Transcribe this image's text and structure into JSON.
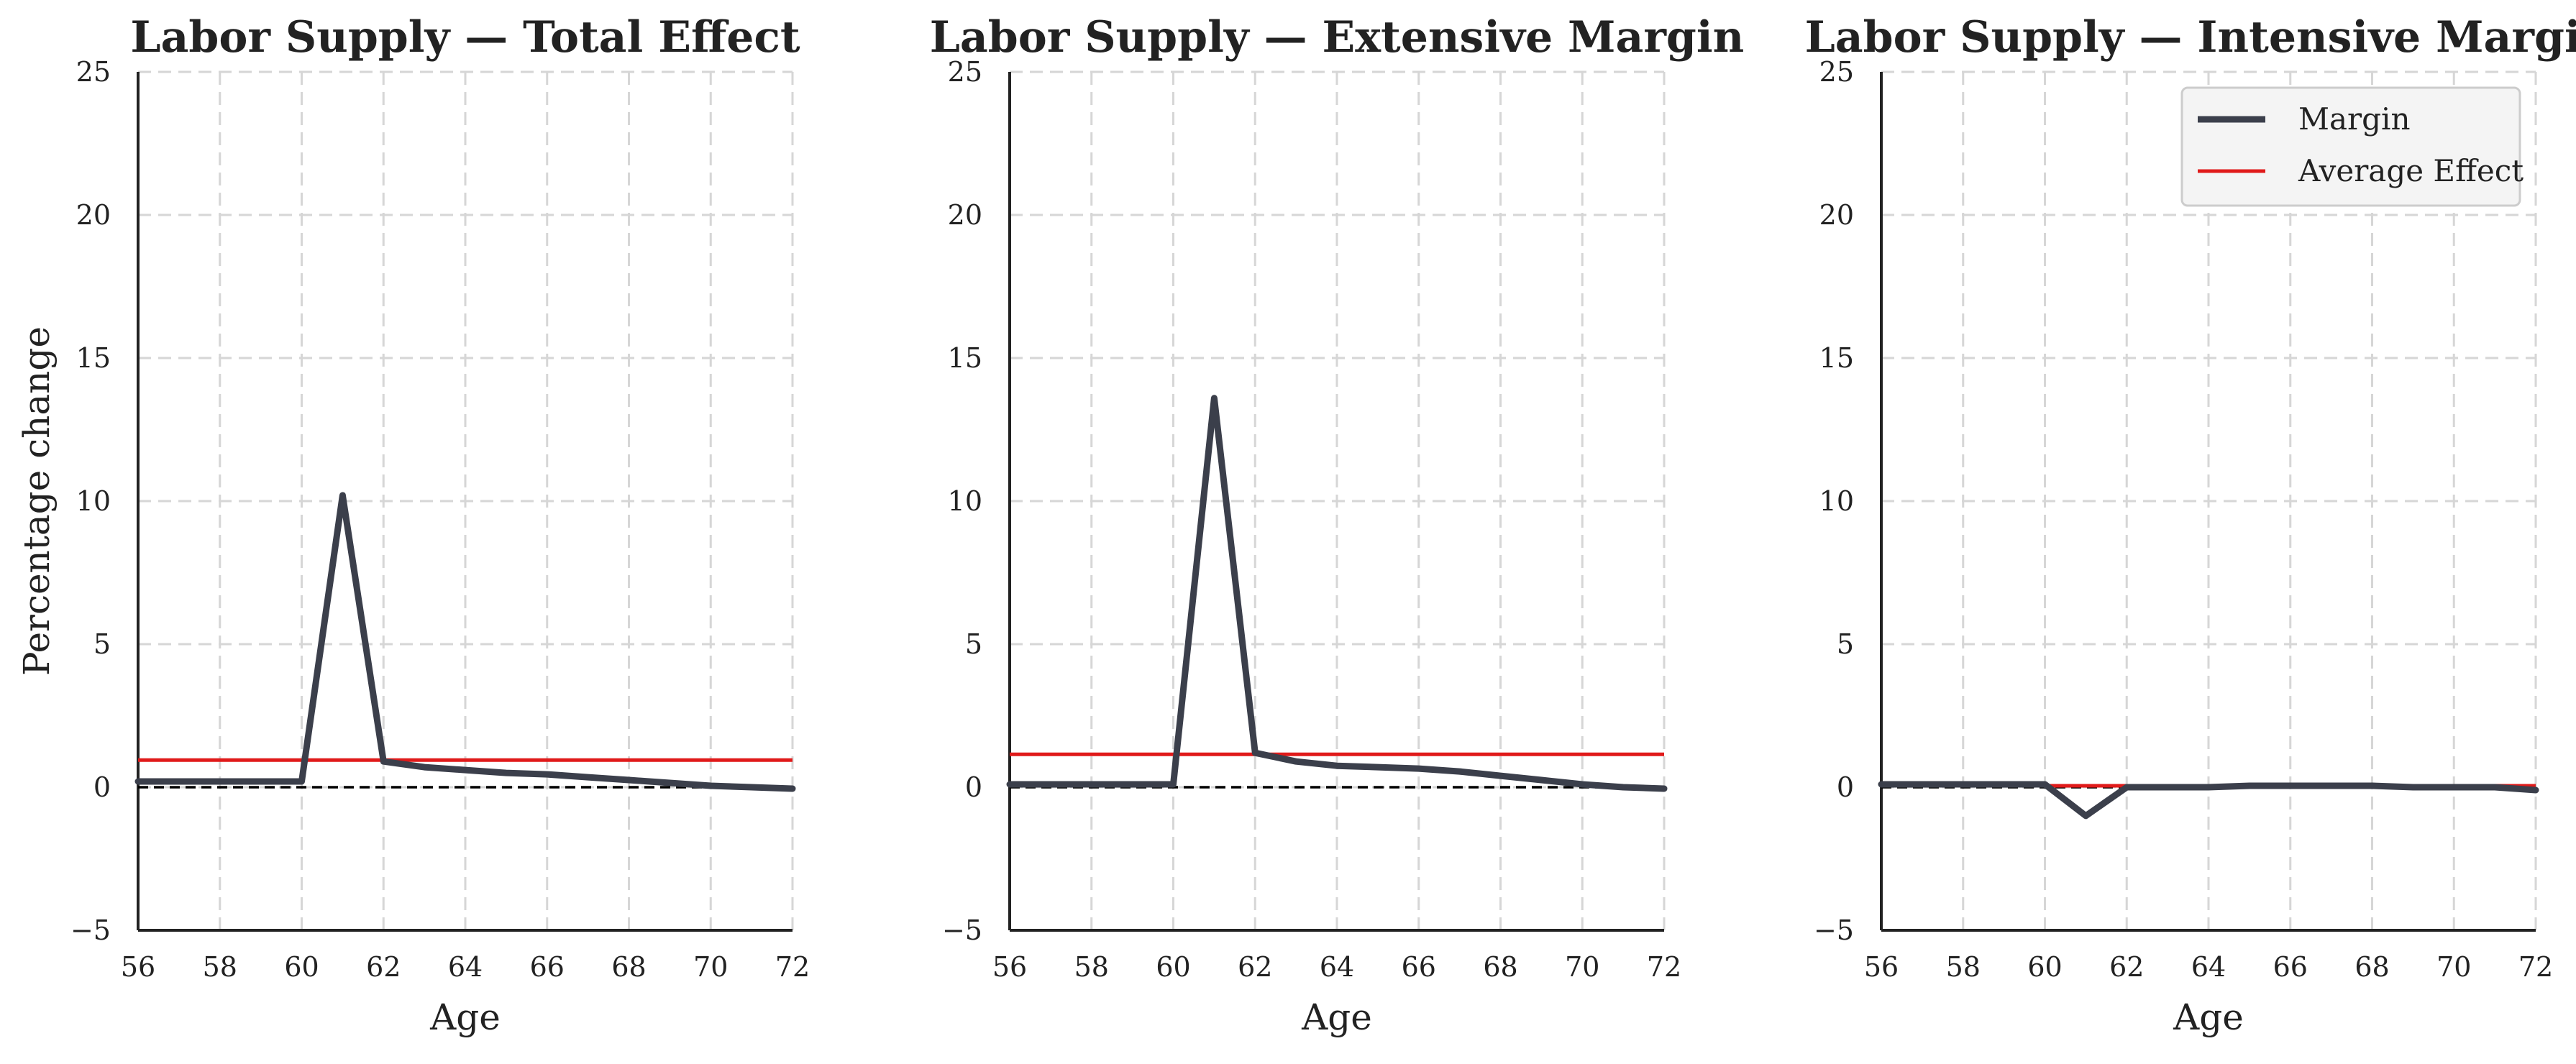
{
  "chart_data": [
    {
      "type": "line",
      "title": "Labor Supply — Total Effect",
      "xlabel": "Age",
      "ylabel": "Percentage change",
      "xlim": [
        56,
        72
      ],
      "ylim": [
        -5,
        25
      ],
      "xticks": [
        "56",
        "58",
        "60",
        "62",
        "64",
        "66",
        "68",
        "70",
        "72"
      ],
      "yticks": [
        "−5",
        "0",
        "5",
        "10",
        "15",
        "20",
        "25"
      ],
      "grid": true,
      "series": [
        {
          "x": [
            56,
            57,
            58,
            59,
            60,
            61,
            62,
            63,
            64,
            65,
            66,
            67,
            68,
            69,
            70,
            71,
            72
          ],
          "y": [
            0.2,
            0.2,
            0.2,
            0.2,
            0.2,
            10.2,
            0.9,
            0.7,
            0.6,
            0.5,
            0.45,
            0.35,
            0.25,
            0.15,
            0.05,
            0.0,
            -0.05
          ]
        }
      ],
      "average_effect": 0.95,
      "zero_line": 0
    },
    {
      "type": "line",
      "title": "Labor Supply — Extensive Margin",
      "xlabel": "Age",
      "ylabel": "",
      "xlim": [
        56,
        72
      ],
      "ylim": [
        -5,
        25
      ],
      "xticks": [
        "56",
        "58",
        "60",
        "62",
        "64",
        "66",
        "68",
        "70",
        "72"
      ],
      "yticks": [
        "−5",
        "0",
        "5",
        "10",
        "15",
        "20",
        "25"
      ],
      "grid": true,
      "series": [
        {
          "x": [
            56,
            57,
            58,
            59,
            60,
            61,
            62,
            63,
            64,
            65,
            66,
            67,
            68,
            69,
            70,
            71,
            72
          ],
          "y": [
            0.1,
            0.1,
            0.1,
            0.1,
            0.1,
            13.6,
            1.2,
            0.9,
            0.75,
            0.7,
            0.65,
            0.55,
            0.4,
            0.25,
            0.1,
            0.0,
            -0.05
          ]
        }
      ],
      "average_effect": 1.15,
      "zero_line": 0
    },
    {
      "type": "line",
      "title": "Labor Supply — Intensive Margin",
      "xlabel": "Age",
      "ylabel": "",
      "xlim": [
        56,
        72
      ],
      "ylim": [
        -5,
        25
      ],
      "xticks": [
        "56",
        "58",
        "60",
        "62",
        "64",
        "66",
        "68",
        "70",
        "72"
      ],
      "yticks": [
        "−5",
        "0",
        "5",
        "10",
        "15",
        "20",
        "25"
      ],
      "grid": true,
      "legend": {
        "position": "top-right",
        "entries": [
          "Margin",
          "Average Effect"
        ]
      },
      "series": [
        {
          "x": [
            56,
            57,
            58,
            59,
            60,
            61,
            62,
            63,
            64,
            65,
            66,
            67,
            68,
            69,
            70,
            71,
            72
          ],
          "y": [
            0.1,
            0.1,
            0.1,
            0.1,
            0.1,
            -1.0,
            0.0,
            0.0,
            0.0,
            0.05,
            0.05,
            0.05,
            0.05,
            0.0,
            0.0,
            0.0,
            -0.1
          ]
        }
      ],
      "average_effect": 0.05,
      "zero_line": 0
    }
  ],
  "colors": {
    "margin_line": "#3b3f4b",
    "average_line": "#e01a1a",
    "zero_line": "#000000",
    "grid": "#d6d6d6",
    "axis": "#222222",
    "legend_bg": "#f4f4f4",
    "legend_border": "#cccccc"
  }
}
